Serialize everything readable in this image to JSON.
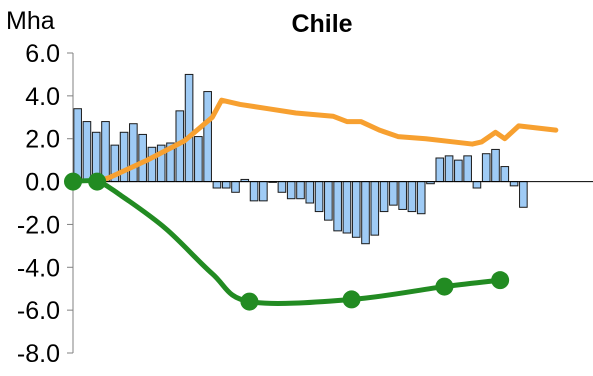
{
  "chart_data": {
    "type": "bar",
    "title": "Chile",
    "ylabel": "Mha",
    "xlabel": "",
    "ylim": [
      -8,
      6
    ],
    "yticks": [
      "6.0",
      "4.0",
      "2.0",
      "0.0",
      "-2.0",
      "-4.0",
      "-6.0",
      "-8.0"
    ],
    "ytick_values": [
      6,
      4,
      2,
      0,
      -2,
      -4,
      -6,
      -8
    ],
    "grid": false,
    "legend": "none",
    "n_periods": 56,
    "colors": {
      "bars": "#9fcbf5",
      "bar_edge": "#1a1a1a",
      "orange_line": "#f7a030",
      "green_line": "#228b22"
    },
    "bars": [
      3.4,
      2.8,
      2.3,
      2.8,
      1.7,
      2.3,
      2.7,
      2.2,
      1.6,
      1.7,
      1.8,
      3.3,
      5.0,
      2.1,
      4.2,
      -0.3,
      -0.3,
      -0.5,
      0.1,
      -0.9,
      -0.9,
      0.0,
      -0.5,
      -0.8,
      -0.8,
      -1.0,
      -1.4,
      -1.8,
      -2.3,
      -2.4,
      -2.6,
      -2.9,
      -2.5,
      -1.4,
      -1.1,
      -1.3,
      -1.4,
      -1.5,
      -0.1,
      1.1,
      1.2,
      1.0,
      1.2,
      -0.3,
      1.3,
      1.5,
      0.7,
      -0.2,
      -1.2
    ],
    "orange_series": [
      {
        "x": 2.6,
        "y": 0.0
      },
      {
        "x": 4,
        "y": 0.2
      },
      {
        "x": 8,
        "y": 1.0
      },
      {
        "x": 12,
        "y": 1.9
      },
      {
        "x": 15,
        "y": 3.0
      },
      {
        "x": 16,
        "y": 3.8
      },
      {
        "x": 18,
        "y": 3.6
      },
      {
        "x": 21,
        "y": 3.4
      },
      {
        "x": 24,
        "y": 3.2
      },
      {
        "x": 28,
        "y": 3.05
      },
      {
        "x": 29.5,
        "y": 2.8
      },
      {
        "x": 31,
        "y": 2.8
      },
      {
        "x": 33,
        "y": 2.4
      },
      {
        "x": 35,
        "y": 2.1
      },
      {
        "x": 38,
        "y": 2.0
      },
      {
        "x": 41,
        "y": 1.85
      },
      {
        "x": 43,
        "y": 1.75
      },
      {
        "x": 44,
        "y": 1.85
      },
      {
        "x": 45.5,
        "y": 2.3
      },
      {
        "x": 46.5,
        "y": 2.0
      },
      {
        "x": 48,
        "y": 2.6
      },
      {
        "x": 50,
        "y": 2.5
      },
      {
        "x": 52,
        "y": 2.4
      }
    ],
    "green_series": [
      {
        "x": 0,
        "y": 0.0,
        "marker": true
      },
      {
        "x": 2.6,
        "y": 0.0,
        "marker": true
      },
      {
        "x": 5,
        "y": -0.6,
        "marker": false
      },
      {
        "x": 10,
        "y": -2.2,
        "marker": false
      },
      {
        "x": 15,
        "y": -4.3,
        "marker": false
      },
      {
        "x": 19,
        "y": -5.6,
        "marker": true
      },
      {
        "x": 30,
        "y": -5.5,
        "marker": true
      },
      {
        "x": 40,
        "y": -4.9,
        "marker": true
      },
      {
        "x": 46,
        "y": -4.6,
        "marker": true
      }
    ]
  }
}
